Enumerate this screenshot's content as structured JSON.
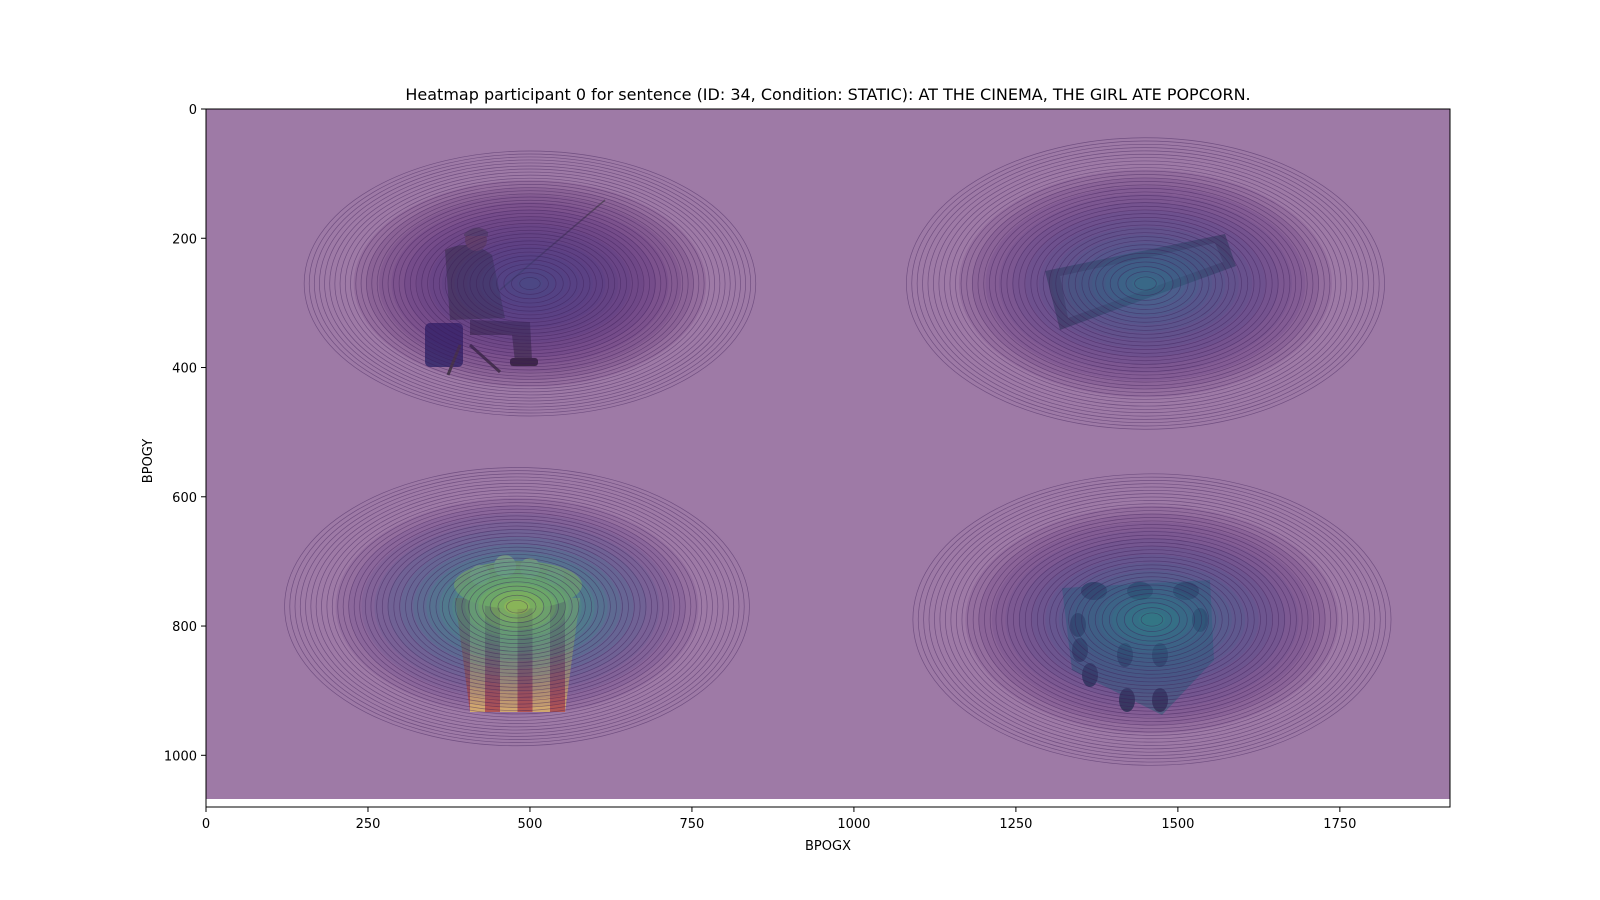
{
  "chart_data": {
    "type": "heatmap",
    "title": "Heatmap participant 0 for sentence (ID: 34, Condition: STATIC):  AT THE CINEMA, THE GIRL ATE POPCORN.",
    "xlabel": "BPOGX",
    "ylabel": "BPOGY",
    "xlim": [
      0,
      1920
    ],
    "ylim": [
      1080,
      0
    ],
    "x_ticks": [
      0,
      250,
      500,
      750,
      1000,
      1250,
      1500,
      1750
    ],
    "y_ticks": [
      0,
      200,
      400,
      600,
      800,
      1000
    ],
    "x_tick_labels": [
      "0",
      "250",
      "500",
      "750",
      "1000",
      "1250",
      "1500",
      "1750"
    ],
    "y_tick_labels": [
      "0",
      "200",
      "400",
      "600",
      "800",
      "1000"
    ],
    "colormap": "viridis",
    "background_color": "#9e7aa6",
    "grid": false,
    "legend": "none",
    "hotspots": [
      {
        "object": "fisherman-icon",
        "x": 500,
        "y": 270,
        "sx": 170,
        "sy": 100,
        "intensity": 0.28
      },
      {
        "object": "keyboard-icon",
        "x": 1450,
        "y": 270,
        "sx": 180,
        "sy": 110,
        "intensity": 0.5
      },
      {
        "object": "popcorn-icon",
        "x": 480,
        "y": 770,
        "sx": 175,
        "sy": 105,
        "intensity": 1.0
      },
      {
        "object": "dice-icon",
        "x": 1460,
        "y": 790,
        "sx": 180,
        "sy": 110,
        "intensity": 0.6
      }
    ]
  }
}
